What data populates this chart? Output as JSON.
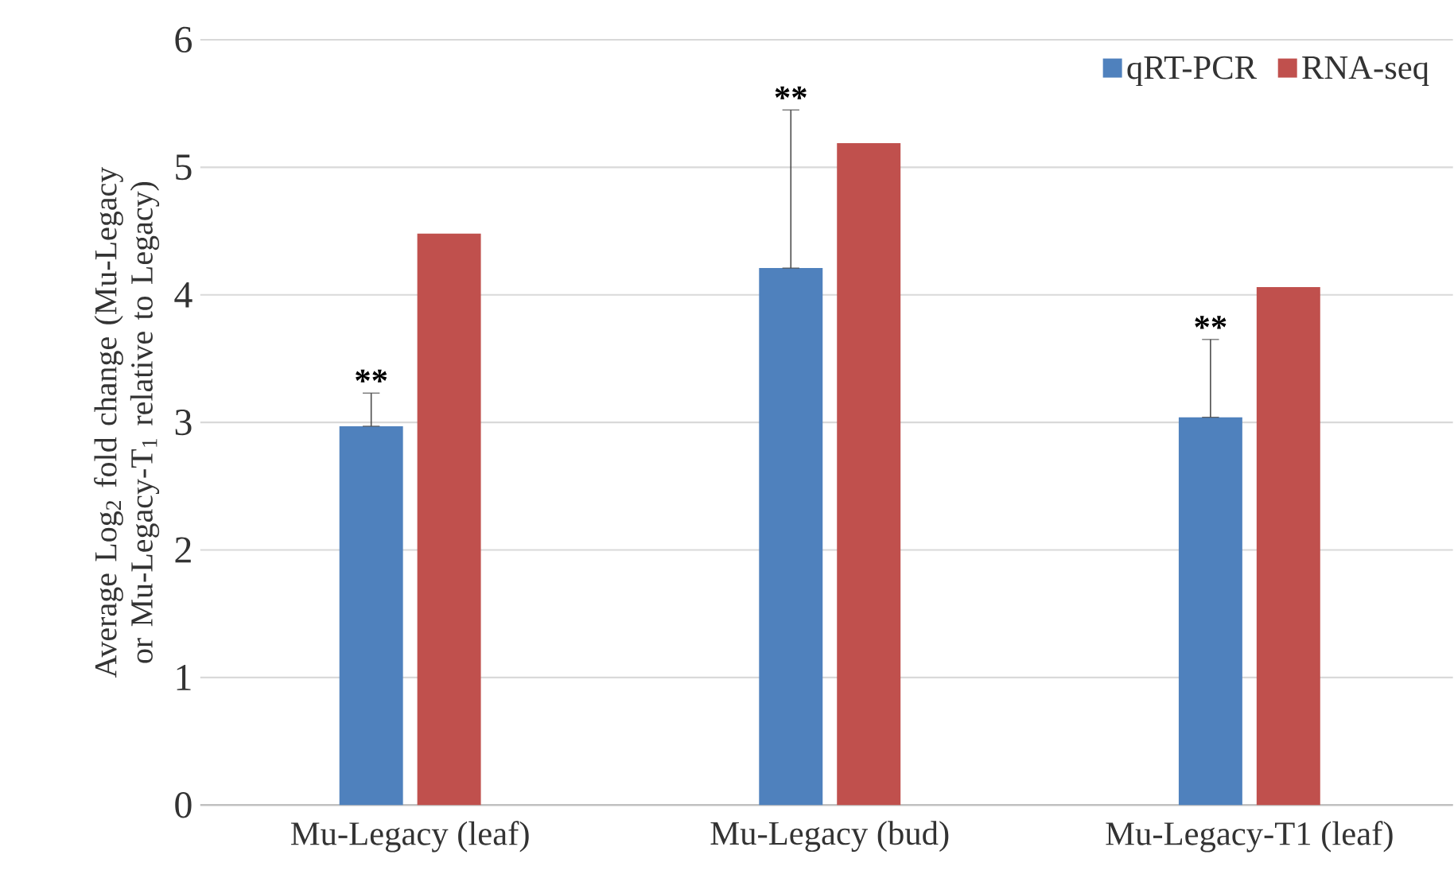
{
  "chart_data": {
    "type": "bar",
    "ylabel": "Average Log$_{2}$ fold change (Mu-Legacy or Mu-Legacy-T$_{1}$ relative to Legacy)",
    "categories": [
      "Mu-Legacy (leaf)",
      "Mu-Legacy (bud)",
      "Mu-Legacy-T1 (leaf)"
    ],
    "series": [
      {
        "name": "qRT-PCR",
        "color": "#4f81bd",
        "values": [
          2.97,
          4.21,
          3.04
        ],
        "errors": [
          [
            2.97,
            3.23
          ],
          [
            4.21,
            5.45
          ],
          [
            3.04,
            3.65
          ]
        ]
      },
      {
        "name": "RNA-seq",
        "color": "#c0504d",
        "values": [
          4.48,
          5.19,
          4.06
        ]
      }
    ],
    "ylim": [
      0,
      6
    ],
    "yticks": [
      0,
      1,
      2,
      3,
      4,
      5,
      6
    ],
    "grid": "y",
    "legend": "top right",
    "annotations": [
      "**",
      "**",
      "**"
    ]
  }
}
